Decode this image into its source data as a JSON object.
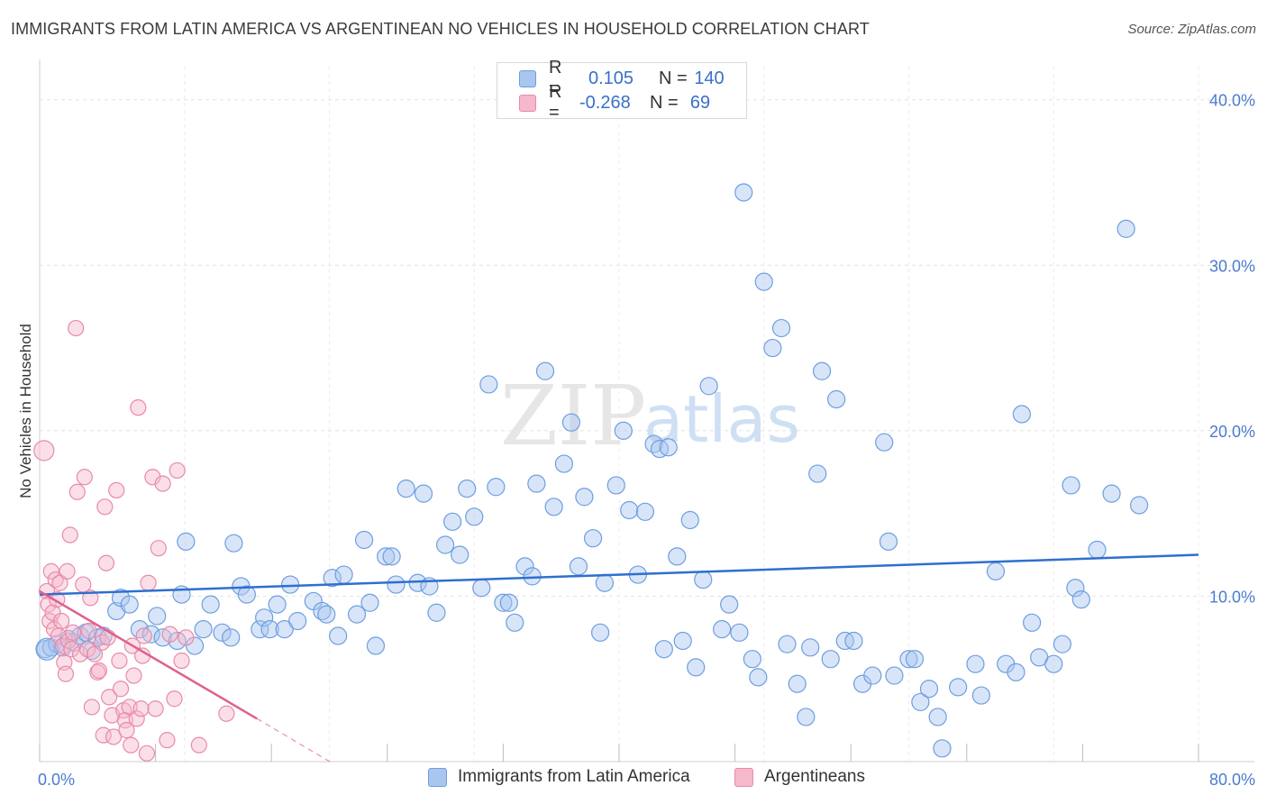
{
  "header": {
    "title": "IMMIGRANTS FROM LATIN AMERICA VS ARGENTINEAN NO VEHICLES IN HOUSEHOLD CORRELATION CHART",
    "source": "Source: ZipAtlas.com"
  },
  "watermark": {
    "zip": "ZIP",
    "atlas": "atlas"
  },
  "legend": {
    "rows": [
      {
        "r_label": "R =",
        "r_value": "0.105",
        "n_label": "N =",
        "n_value": "140",
        "color": "#a9c6ef",
        "edge": "#6d9ee0"
      },
      {
        "r_label": "R =",
        "r_value": "-0.268",
        "n_label": "N =",
        "n_value": "69",
        "color": "#f6b8cb",
        "edge": "#e88aa8"
      }
    ]
  },
  "bottom_legend": {
    "items": [
      {
        "label": "Immigrants from Latin America",
        "color": "#a9c6ef",
        "edge": "#6d9ee0"
      },
      {
        "label": "Argentineans",
        "color": "#f6b8cb",
        "edge": "#e88aa8"
      }
    ]
  },
  "chart_data": {
    "type": "scatter",
    "ylabel": "No Vehicles in Household",
    "xlim": [
      0,
      80
    ],
    "ylim": [
      0,
      42
    ],
    "x_tick_labels": [
      {
        "value": 0,
        "label": "0.0%"
      },
      {
        "value": 80,
        "label": "80.0%"
      }
    ],
    "y_tick_labels": [
      {
        "value": 10,
        "label": "10.0%"
      },
      {
        "value": 20,
        "label": "20.0%"
      },
      {
        "value": 30,
        "label": "30.0%"
      },
      {
        "value": 40,
        "label": "40.0%"
      }
    ],
    "grid": true,
    "series": [
      {
        "name": "Immigrants from Latin America",
        "color": "#a9c6ef",
        "edge": "#6d9ee0",
        "line_color": "#2f6fcf",
        "trend": {
          "x0": 0,
          "y0": 10.1,
          "x1": 80,
          "y1": 12.5
        },
        "points": [
          [
            0.4,
            6.8
          ],
          [
            0.8,
            6.9
          ],
          [
            1.2,
            7.1
          ],
          [
            1.6,
            6.9
          ],
          [
            2.0,
            7.4
          ],
          [
            2.4,
            7.2
          ],
          [
            2.8,
            7.6
          ],
          [
            3.2,
            7.8
          ],
          [
            3.6,
            6.7
          ],
          [
            4.0,
            7.5
          ],
          [
            4.4,
            7.6
          ],
          [
            5.3,
            9.1
          ],
          [
            5.6,
            9.9
          ],
          [
            6.2,
            9.5
          ],
          [
            6.9,
            8.0
          ],
          [
            7.7,
            7.7
          ],
          [
            8.1,
            8.8
          ],
          [
            8.5,
            7.5
          ],
          [
            9.5,
            7.3
          ],
          [
            9.8,
            10.1
          ],
          [
            10.1,
            13.3
          ],
          [
            10.7,
            7.0
          ],
          [
            11.3,
            8.0
          ],
          [
            11.8,
            9.5
          ],
          [
            12.6,
            7.8
          ],
          [
            13.2,
            7.5
          ],
          [
            13.4,
            13.2
          ],
          [
            13.9,
            10.6
          ],
          [
            14.3,
            10.1
          ],
          [
            15.2,
            8.0
          ],
          [
            15.5,
            8.7
          ],
          [
            15.9,
            8.0
          ],
          [
            16.4,
            9.5
          ],
          [
            16.9,
            8.0
          ],
          [
            17.3,
            10.7
          ],
          [
            17.8,
            8.5
          ],
          [
            18.9,
            9.7
          ],
          [
            19.5,
            9.1
          ],
          [
            19.8,
            8.9
          ],
          [
            20.2,
            11.1
          ],
          [
            20.6,
            7.6
          ],
          [
            21.0,
            11.3
          ],
          [
            21.9,
            8.9
          ],
          [
            22.4,
            13.4
          ],
          [
            22.8,
            9.6
          ],
          [
            23.2,
            7.0
          ],
          [
            23.9,
            12.4
          ],
          [
            24.3,
            12.4
          ],
          [
            24.6,
            10.7
          ],
          [
            25.3,
            16.5
          ],
          [
            26.1,
            10.8
          ],
          [
            26.5,
            16.2
          ],
          [
            26.9,
            10.6
          ],
          [
            27.4,
            9.0
          ],
          [
            28.0,
            13.1
          ],
          [
            28.5,
            14.5
          ],
          [
            29.0,
            12.5
          ],
          [
            29.5,
            16.5
          ],
          [
            30.0,
            14.8
          ],
          [
            30.5,
            10.5
          ],
          [
            31.0,
            22.8
          ],
          [
            31.5,
            16.6
          ],
          [
            32.0,
            9.6
          ],
          [
            32.4,
            9.6
          ],
          [
            32.8,
            8.4
          ],
          [
            33.5,
            11.8
          ],
          [
            34.0,
            11.2
          ],
          [
            34.3,
            16.8
          ],
          [
            34.9,
            23.6
          ],
          [
            35.5,
            15.4
          ],
          [
            36.2,
            18.0
          ],
          [
            36.7,
            20.5
          ],
          [
            37.2,
            11.8
          ],
          [
            37.6,
            16.0
          ],
          [
            38.2,
            13.5
          ],
          [
            38.7,
            7.8
          ],
          [
            39.0,
            10.8
          ],
          [
            39.8,
            16.7
          ],
          [
            40.3,
            20.0
          ],
          [
            40.7,
            15.2
          ],
          [
            41.3,
            11.3
          ],
          [
            41.8,
            15.1
          ],
          [
            42.4,
            19.2
          ],
          [
            42.8,
            18.9
          ],
          [
            43.1,
            6.8
          ],
          [
            43.4,
            19.0
          ],
          [
            44.0,
            12.4
          ],
          [
            44.4,
            7.3
          ],
          [
            44.9,
            14.6
          ],
          [
            45.3,
            5.7
          ],
          [
            45.8,
            11.0
          ],
          [
            46.2,
            22.7
          ],
          [
            47.1,
            8.0
          ],
          [
            47.6,
            9.5
          ],
          [
            48.3,
            7.8
          ],
          [
            48.6,
            34.4
          ],
          [
            49.2,
            6.2
          ],
          [
            49.6,
            5.1
          ],
          [
            50.0,
            29.0
          ],
          [
            50.6,
            25.0
          ],
          [
            51.2,
            26.2
          ],
          [
            51.6,
            7.1
          ],
          [
            52.3,
            4.7
          ],
          [
            52.9,
            2.7
          ],
          [
            53.2,
            6.9
          ],
          [
            53.7,
            17.4
          ],
          [
            54.0,
            23.6
          ],
          [
            54.6,
            6.2
          ],
          [
            55.0,
            21.9
          ],
          [
            55.6,
            7.3
          ],
          [
            56.2,
            7.3
          ],
          [
            56.8,
            4.7
          ],
          [
            57.5,
            5.2
          ],
          [
            58.3,
            19.3
          ],
          [
            58.6,
            13.3
          ],
          [
            59.0,
            5.2
          ],
          [
            60.0,
            6.2
          ],
          [
            60.4,
            6.2
          ],
          [
            60.8,
            3.6
          ],
          [
            61.4,
            4.4
          ],
          [
            62.0,
            2.7
          ],
          [
            62.3,
            0.8
          ],
          [
            63.4,
            4.5
          ],
          [
            64.6,
            5.9
          ],
          [
            65.0,
            4.0
          ],
          [
            66.0,
            11.5
          ],
          [
            66.7,
            5.9
          ],
          [
            67.4,
            5.4
          ],
          [
            67.8,
            21.0
          ],
          [
            68.5,
            8.4
          ],
          [
            69.0,
            6.3
          ],
          [
            70.0,
            5.9
          ],
          [
            70.6,
            7.1
          ],
          [
            71.2,
            16.7
          ],
          [
            71.5,
            10.5
          ],
          [
            71.9,
            9.8
          ],
          [
            73.0,
            12.8
          ],
          [
            74.0,
            16.2
          ],
          [
            75.0,
            32.2
          ],
          [
            75.9,
            15.5
          ]
        ],
        "big_points": [
          [
            0.5,
            6.8
          ]
        ]
      },
      {
        "name": "Argentineans",
        "color": "#f6b8cb",
        "edge": "#e88aa8",
        "line_color": "#e05f8e",
        "trend": {
          "x0": 0,
          "y0": 10.3,
          "x1": 15.0,
          "y1": 2.6
        },
        "trend_dashed": {
          "x0": 15.0,
          "y0": 2.6,
          "x1": 21.0,
          "y1": -0.5
        },
        "points": [
          [
            0.3,
            18.8
          ],
          [
            0.5,
            10.3
          ],
          [
            0.6,
            9.5
          ],
          [
            0.7,
            8.5
          ],
          [
            0.8,
            11.5
          ],
          [
            0.9,
            9.0
          ],
          [
            1.0,
            8.0
          ],
          [
            1.1,
            11.0
          ],
          [
            1.2,
            9.8
          ],
          [
            1.3,
            7.6
          ],
          [
            1.4,
            10.8
          ],
          [
            1.5,
            8.5
          ],
          [
            1.6,
            7.0
          ],
          [
            1.7,
            6.0
          ],
          [
            1.8,
            5.3
          ],
          [
            1.9,
            11.5
          ],
          [
            2.0,
            7.3
          ],
          [
            2.1,
            13.7
          ],
          [
            2.2,
            6.8
          ],
          [
            2.3,
            7.8
          ],
          [
            2.5,
            26.2
          ],
          [
            2.6,
            16.3
          ],
          [
            2.8,
            6.5
          ],
          [
            3.0,
            10.7
          ],
          [
            3.1,
            17.2
          ],
          [
            3.3,
            6.8
          ],
          [
            3.4,
            7.9
          ],
          [
            3.5,
            9.9
          ],
          [
            3.6,
            3.3
          ],
          [
            3.8,
            6.5
          ],
          [
            4.0,
            5.4
          ],
          [
            4.1,
            5.5
          ],
          [
            4.3,
            7.2
          ],
          [
            4.4,
            1.6
          ],
          [
            4.5,
            15.4
          ],
          [
            4.6,
            12.0
          ],
          [
            4.7,
            7.5
          ],
          [
            4.8,
            3.9
          ],
          [
            5.0,
            2.8
          ],
          [
            5.1,
            1.5
          ],
          [
            5.3,
            16.4
          ],
          [
            5.5,
            6.1
          ],
          [
            5.6,
            4.4
          ],
          [
            5.8,
            3.1
          ],
          [
            5.9,
            2.5
          ],
          [
            6.0,
            1.9
          ],
          [
            6.2,
            3.3
          ],
          [
            6.3,
            1.0
          ],
          [
            6.4,
            7.0
          ],
          [
            6.5,
            5.2
          ],
          [
            6.7,
            2.6
          ],
          [
            6.8,
            21.4
          ],
          [
            7.0,
            3.2
          ],
          [
            7.1,
            6.4
          ],
          [
            7.2,
            7.6
          ],
          [
            7.4,
            0.5
          ],
          [
            7.5,
            10.8
          ],
          [
            7.8,
            17.2
          ],
          [
            8.0,
            3.2
          ],
          [
            8.2,
            12.9
          ],
          [
            8.5,
            16.8
          ],
          [
            8.8,
            1.3
          ],
          [
            9.0,
            7.7
          ],
          [
            9.3,
            3.8
          ],
          [
            9.5,
            17.6
          ],
          [
            9.8,
            6.1
          ],
          [
            10.1,
            7.5
          ],
          [
            11.0,
            1.0
          ],
          [
            12.9,
            2.9
          ]
        ]
      }
    ]
  }
}
